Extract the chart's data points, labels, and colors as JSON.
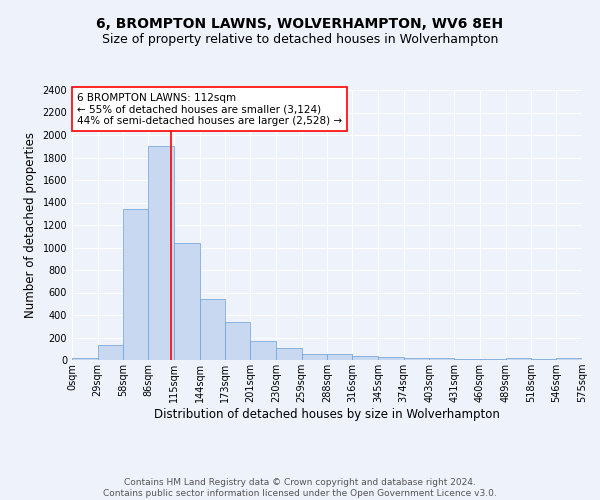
{
  "title": "6, BROMPTON LAWNS, WOLVERHAMPTON, WV6 8EH",
  "subtitle": "Size of property relative to detached houses in Wolverhampton",
  "xlabel": "Distribution of detached houses by size in Wolverhampton",
  "ylabel": "Number of detached properties",
  "bar_values": [
    15,
    130,
    1340,
    1900,
    1040,
    540,
    340,
    170,
    110,
    55,
    55,
    35,
    30,
    20,
    15,
    10,
    5,
    15,
    5,
    15
  ],
  "bin_labels": [
    "0sqm",
    "29sqm",
    "58sqm",
    "86sqm",
    "115sqm",
    "144sqm",
    "173sqm",
    "201sqm",
    "230sqm",
    "259sqm",
    "288sqm",
    "316sqm",
    "345sqm",
    "374sqm",
    "403sqm",
    "431sqm",
    "460sqm",
    "489sqm",
    "518sqm",
    "546sqm",
    "575sqm"
  ],
  "bar_color": "#c8d8f0",
  "bar_edgecolor": "#6a9fd8",
  "bar_linewidth": 0.5,
  "vline_x": 112,
  "vline_color": "red",
  "vline_linewidth": 1.2,
  "ylim": [
    0,
    2400
  ],
  "yticks": [
    0,
    200,
    400,
    600,
    800,
    1000,
    1200,
    1400,
    1600,
    1800,
    2000,
    2200,
    2400
  ],
  "annotation_text": "6 BROMPTON LAWNS: 112sqm\n← 55% of detached houses are smaller (3,124)\n44% of semi-detached houses are larger (2,528) →",
  "annotation_box_color": "white",
  "annotation_box_edgecolor": "red",
  "footer_line1": "Contains HM Land Registry data © Crown copyright and database right 2024.",
  "footer_line2": "Contains public sector information licensed under the Open Government Licence v3.0.",
  "background_color": "#eef2fa",
  "grid_color": "white",
  "title_fontsize": 10,
  "subtitle_fontsize": 9,
  "xlabel_fontsize": 8.5,
  "ylabel_fontsize": 8.5,
  "tick_fontsize": 7,
  "annotation_fontsize": 7.5,
  "footer_fontsize": 6.5,
  "bins_edges": [
    0,
    29,
    58,
    86,
    115,
    144,
    173,
    201,
    230,
    259,
    288,
    316,
    345,
    374,
    403,
    431,
    460,
    489,
    518,
    546,
    575
  ]
}
